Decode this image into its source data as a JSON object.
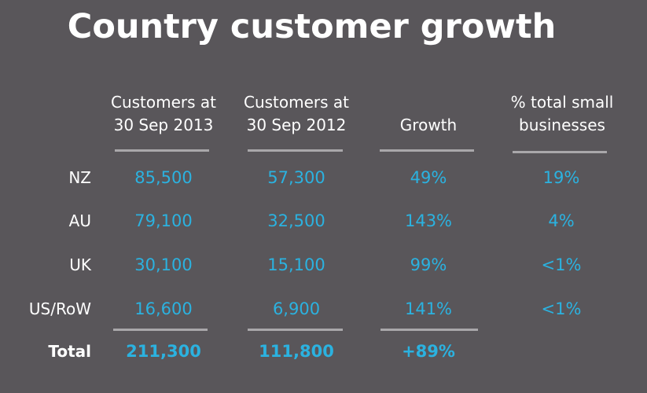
{
  "title": "Country customer growth",
  "columns": [
    "Customers at 30 Sep 2013",
    "Customers at 30 Sep 2012",
    "Growth",
    "% total small businesses"
  ],
  "rows": [
    {
      "label": "NZ",
      "values": [
        "85,500",
        "57,300",
        "49%",
        "19%"
      ]
    },
    {
      "label": "AU",
      "values": [
        "79,100",
        "32,500",
        "143%",
        "4%"
      ]
    },
    {
      "label": "UK",
      "values": [
        "30,100",
        "15,100",
        "99%",
        "<1%"
      ]
    },
    {
      "label": "US/RoW",
      "values": [
        "16,600",
        "6,900",
        "141%",
        "<1%"
      ]
    }
  ],
  "total": {
    "label": "Total",
    "values": [
      "211,300",
      "111,800",
      "+89%",
      ""
    ]
  },
  "colors": {
    "background": "#59565a",
    "value_text": "#2bb2e0",
    "rule": "#a9a7aa",
    "heading_text": "#ffffff"
  }
}
